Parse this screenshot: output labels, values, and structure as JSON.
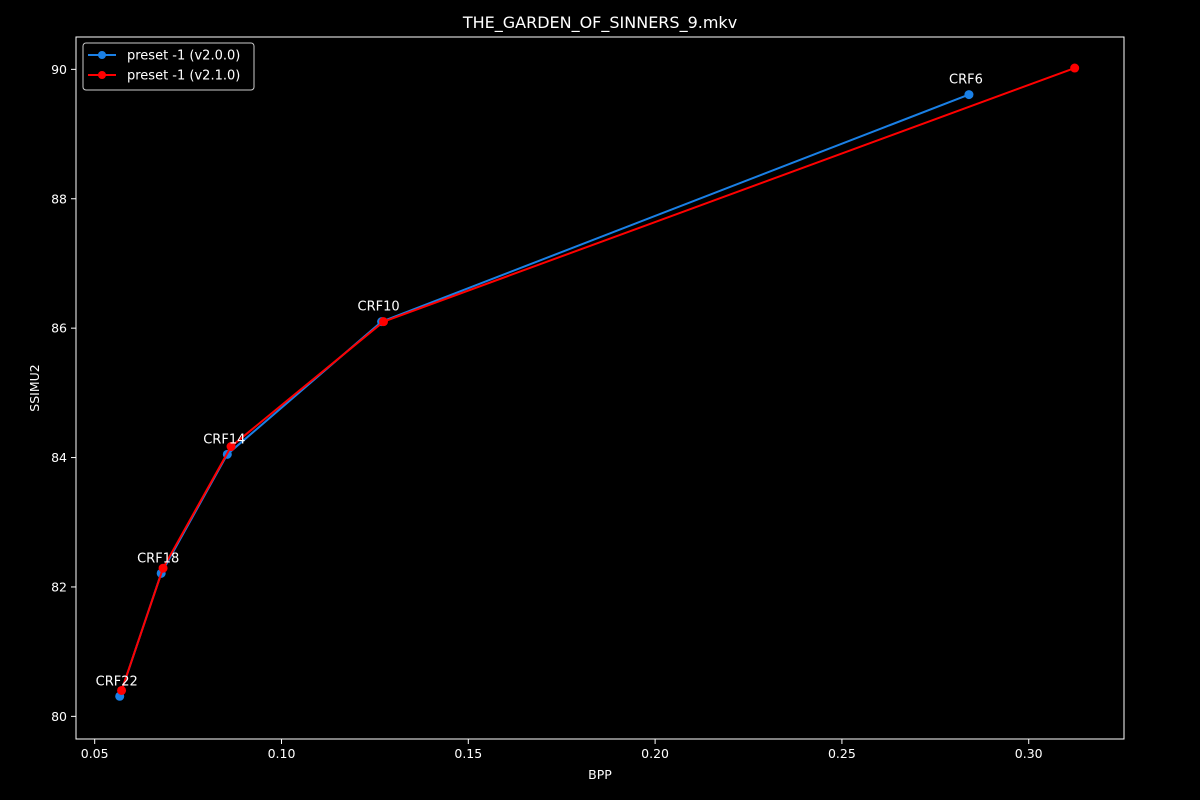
{
  "chart_data": {
    "type": "line",
    "title": "THE_GARDEN_OF_SINNERS_9.mkv",
    "xlabel": "BPP",
    "ylabel": "SSIMU2",
    "xlim": [
      0.045,
      0.3255
    ],
    "ylim": [
      79.65,
      90.5
    ],
    "x_ticks": [
      0.05,
      0.1,
      0.15,
      0.2,
      0.25,
      0.3
    ],
    "x_tick_labels": [
      "0.05",
      "0.10",
      "0.15",
      "0.20",
      "0.25",
      "0.30"
    ],
    "y_ticks": [
      80,
      82,
      84,
      86,
      88,
      90
    ],
    "y_tick_labels": [
      "80",
      "82",
      "84",
      "86",
      "88",
      "90"
    ],
    "grid": false,
    "legend_position": "top-left",
    "background": "#000000",
    "series": [
      {
        "name": "preset -1 (v2.0.0)",
        "color": "#1a80e6",
        "points": [
          {
            "x": 0.0567,
            "y": 80.31
          },
          {
            "x": 0.0678,
            "y": 82.21
          },
          {
            "x": 0.0855,
            "y": 84.05
          },
          {
            "x": 0.1268,
            "y": 86.1
          },
          {
            "x": 0.284,
            "y": 89.61
          }
        ]
      },
      {
        "name": "preset -1 (v2.1.0)",
        "color": "#ff0000",
        "points": [
          {
            "x": 0.0572,
            "y": 80.4
          },
          {
            "x": 0.0683,
            "y": 82.29
          },
          {
            "x": 0.0865,
            "y": 84.17
          },
          {
            "x": 0.1273,
            "y": 86.1
          },
          {
            "x": 0.3123,
            "y": 90.02
          }
        ]
      }
    ],
    "annotations": [
      {
        "text": "CRF22",
        "x": 0.0567,
        "y": 80.31
      },
      {
        "text": "CRF18",
        "x": 0.0678,
        "y": 82.21
      },
      {
        "text": "CRF14",
        "x": 0.0855,
        "y": 84.05
      },
      {
        "text": "CRF10",
        "x": 0.1268,
        "y": 86.1
      },
      {
        "text": "CRF6",
        "x": 0.284,
        "y": 89.61
      }
    ]
  }
}
